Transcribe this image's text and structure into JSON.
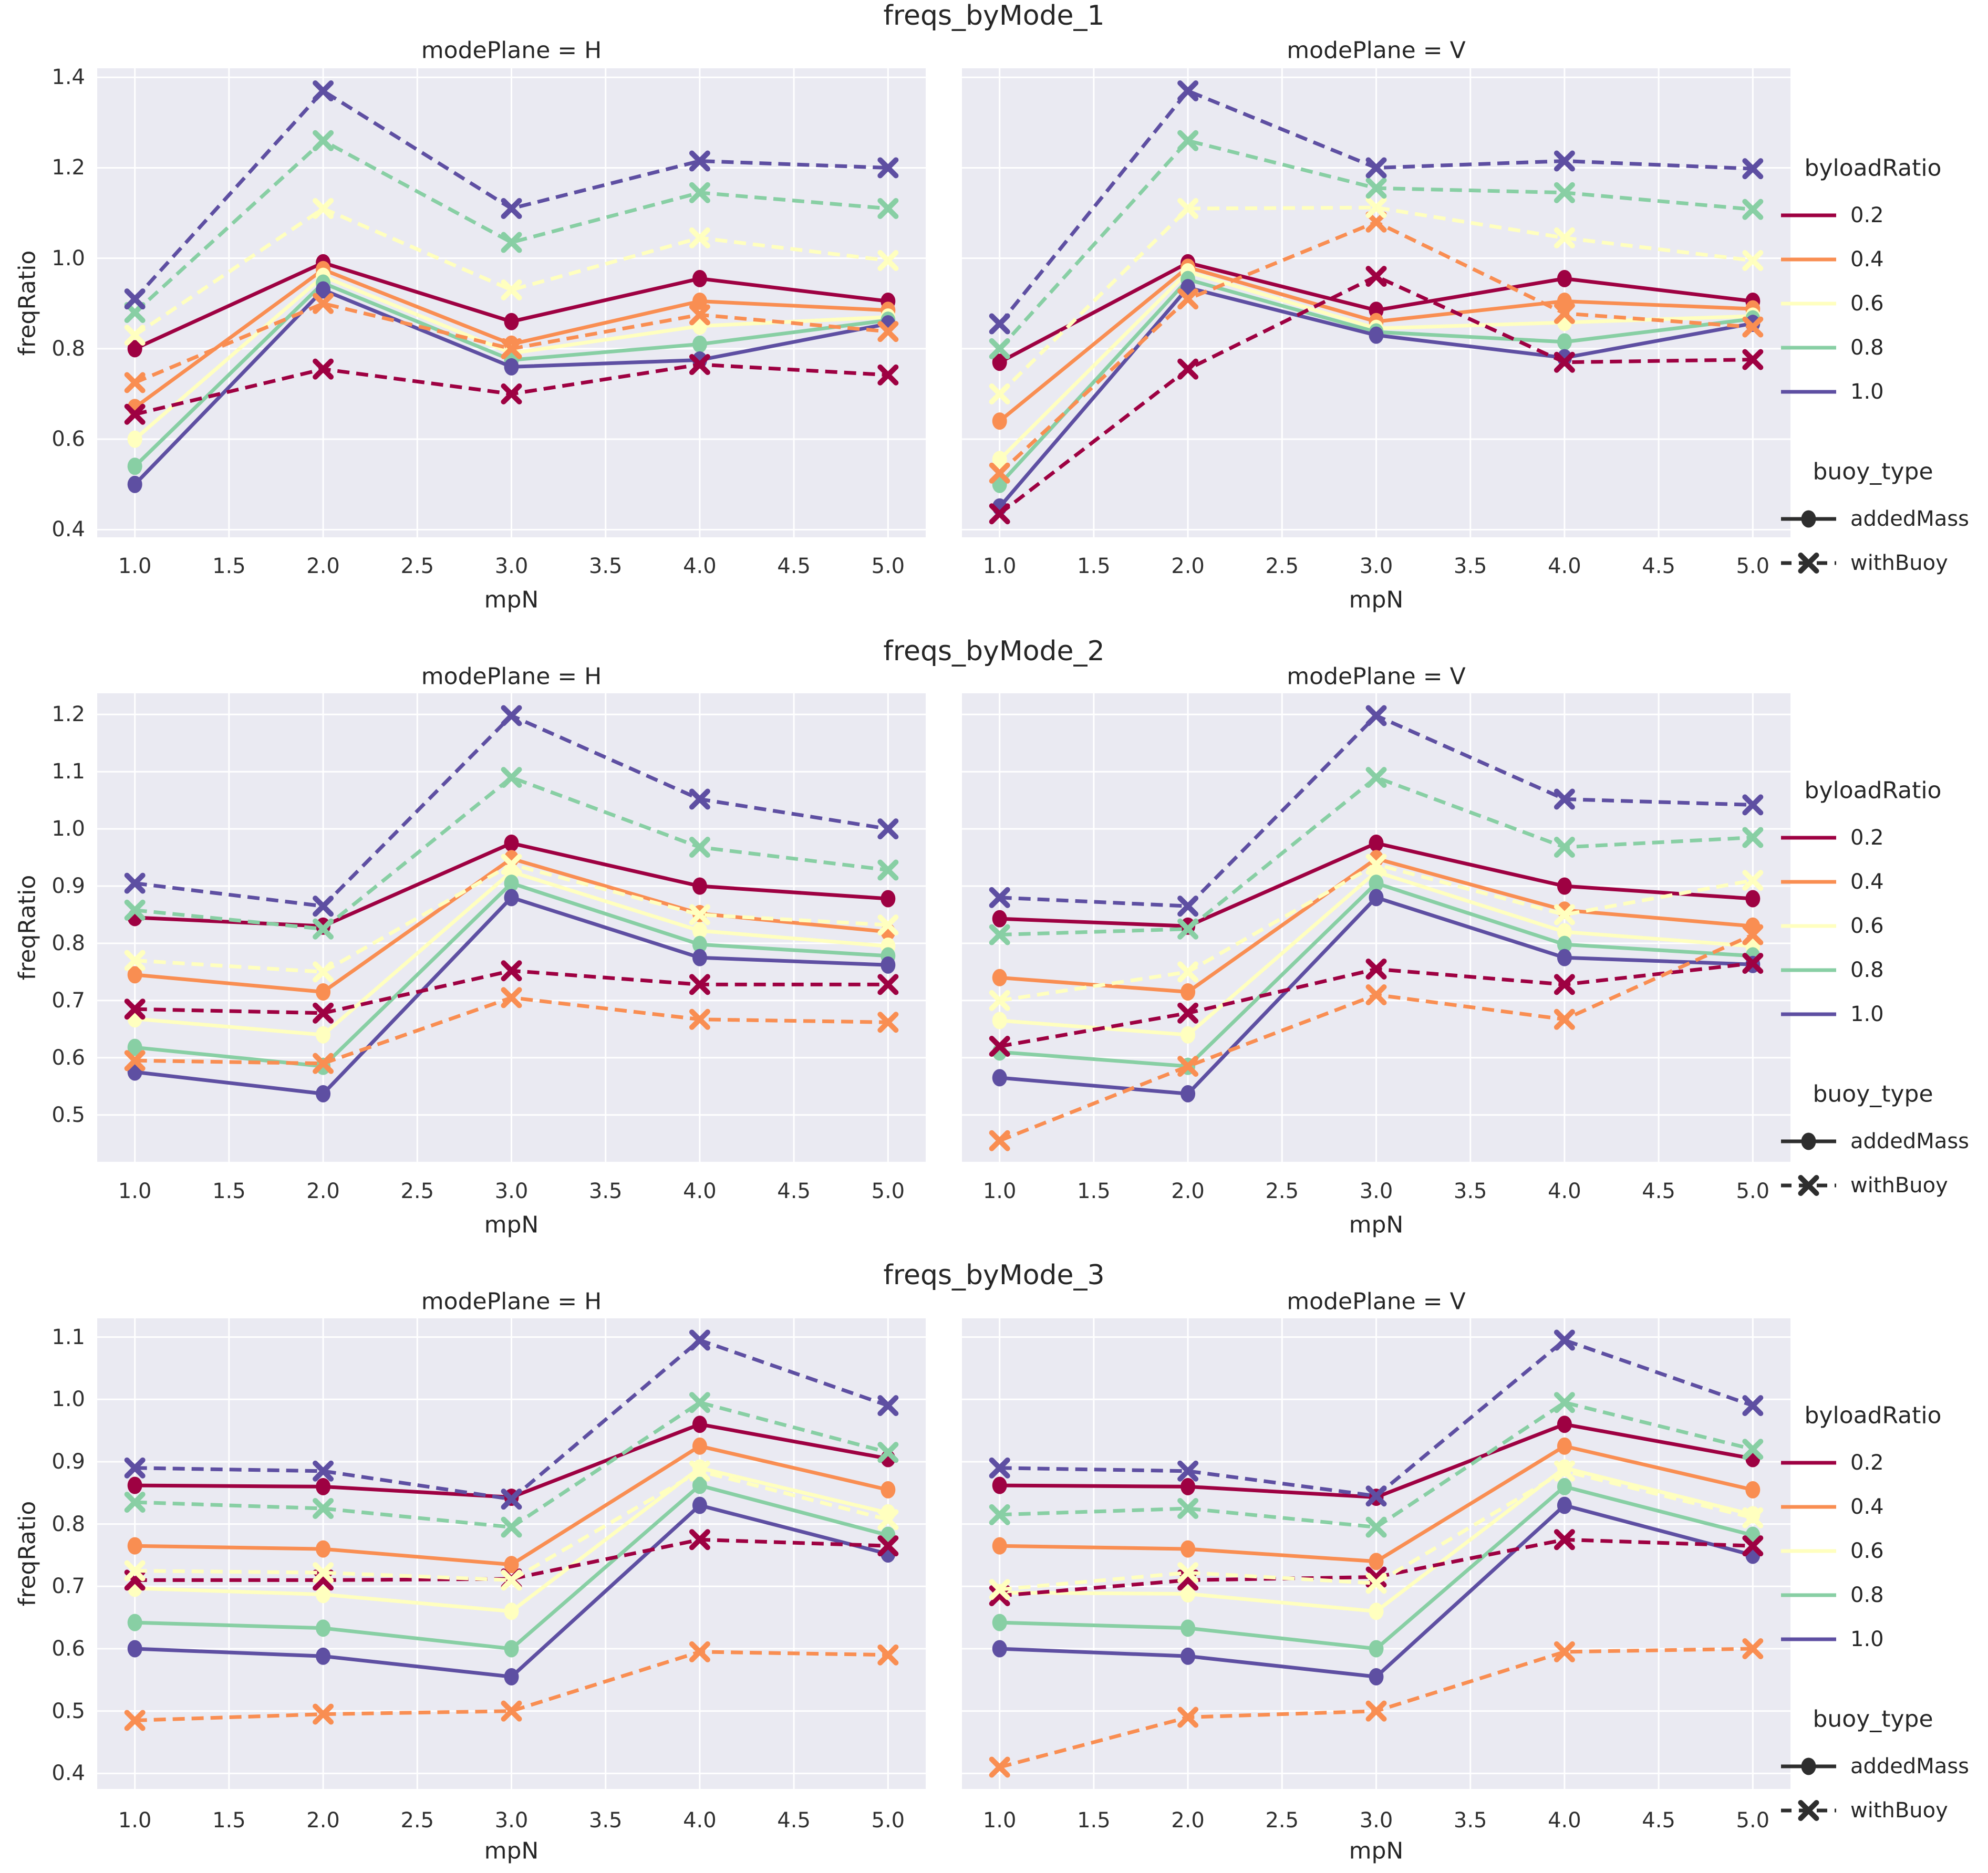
{
  "figure_kind": "seaborn relplot grid, 3 stacked figures x 2 facets",
  "colors": {
    "panel_bg": "#eaeaf2",
    "grid": "#ffffff",
    "text": "#262626",
    "tick_text": "#303030",
    "legend_marker": "#2e2e2e"
  },
  "axes": {
    "xlabel": "mpN",
    "ylabel": "freqRatio",
    "xlim": [
      0.8,
      5.2
    ],
    "x_values": [
      1,
      2,
      3,
      4,
      5
    ],
    "xtick_values": [
      1.0,
      1.5,
      2.0,
      2.5,
      3.0,
      3.5,
      4.0,
      4.5,
      5.0
    ],
    "xticklabels": [
      "1.0",
      "1.5",
      "2.0",
      "2.5",
      "3.0",
      "3.5",
      "4.0",
      "4.5",
      "5.0"
    ]
  },
  "legend": {
    "hue_title": "byloadRatio",
    "hue_items": [
      {
        "label": "0.2",
        "color": "#9e0142"
      },
      {
        "label": "0.4",
        "color": "#f98e52"
      },
      {
        "label": "0.6",
        "color": "#ffffbf"
      },
      {
        "label": "0.8",
        "color": "#88cfa4"
      },
      {
        "label": "1.0",
        "color": "#5e4fa2"
      }
    ],
    "style_title": "buoy_type",
    "style_items": [
      {
        "label": "addedMass",
        "line": "solid",
        "marker": "circle"
      },
      {
        "label": "withBuoy",
        "line": "dashed",
        "marker": "x"
      }
    ]
  },
  "chart_data": [
    {
      "type": "line",
      "title": "freqs_byMode_1",
      "ylim": [
        0.383,
        1.42
      ],
      "ytick_values": [
        1.4,
        1.2,
        1.0,
        0.8,
        0.6,
        0.4
      ],
      "yticklabels": [
        "1.4",
        "1.2",
        "1.0",
        "0.8",
        "0.6",
        "0.4"
      ],
      "panels": [
        {
          "title": "modePlane = H",
          "series": [
            {
              "byloadRatio": "0.2",
              "buoy_type": "addedMass",
              "values": [
                0.8,
                0.99,
                0.86,
                0.955,
                0.905
              ]
            },
            {
              "byloadRatio": "0.4",
              "buoy_type": "addedMass",
              "values": [
                0.67,
                0.975,
                0.81,
                0.905,
                0.885
              ]
            },
            {
              "byloadRatio": "0.6",
              "buoy_type": "addedMass",
              "values": [
                0.6,
                0.96,
                0.79,
                0.85,
                0.87
              ]
            },
            {
              "byloadRatio": "0.8",
              "buoy_type": "addedMass",
              "values": [
                0.54,
                0.945,
                0.775,
                0.81,
                0.863
              ]
            },
            {
              "byloadRatio": "1.0",
              "buoy_type": "addedMass",
              "values": [
                0.5,
                0.93,
                0.76,
                0.775,
                0.855
              ]
            },
            {
              "byloadRatio": "0.2",
              "buoy_type": "withBuoy",
              "values": [
                0.655,
                0.755,
                0.7,
                0.765,
                0.742
              ]
            },
            {
              "byloadRatio": "0.4",
              "buoy_type": "withBuoy",
              "values": [
                0.725,
                0.9,
                0.8,
                0.875,
                0.838
              ]
            },
            {
              "byloadRatio": "0.6",
              "buoy_type": "withBuoy",
              "values": [
                0.83,
                1.11,
                0.93,
                1.045,
                0.995
              ]
            },
            {
              "byloadRatio": "0.8",
              "buoy_type": "withBuoy",
              "values": [
                0.88,
                1.26,
                1.035,
                1.145,
                1.11
              ]
            },
            {
              "byloadRatio": "1.0",
              "buoy_type": "withBuoy",
              "values": [
                0.91,
                1.37,
                1.11,
                1.215,
                1.2
              ]
            }
          ]
        },
        {
          "title": "modePlane = V",
          "series": [
            {
              "byloadRatio": "0.2",
              "buoy_type": "addedMass",
              "values": [
                0.77,
                0.99,
                0.885,
                0.955,
                0.905
              ]
            },
            {
              "byloadRatio": "0.4",
              "buoy_type": "addedMass",
              "values": [
                0.64,
                0.98,
                0.86,
                0.905,
                0.888
              ]
            },
            {
              "byloadRatio": "0.6",
              "buoy_type": "addedMass",
              "values": [
                0.555,
                0.97,
                0.845,
                0.858,
                0.872
              ]
            },
            {
              "byloadRatio": "0.8",
              "buoy_type": "addedMass",
              "values": [
                0.5,
                0.953,
                0.837,
                0.815,
                0.866
              ]
            },
            {
              "byloadRatio": "1.0",
              "buoy_type": "addedMass",
              "values": [
                0.45,
                0.935,
                0.83,
                0.78,
                0.856
              ]
            },
            {
              "byloadRatio": "0.2",
              "buoy_type": "withBuoy",
              "values": [
                0.435,
                0.755,
                0.96,
                0.77,
                0.776
              ]
            },
            {
              "byloadRatio": "0.4",
              "buoy_type": "withBuoy",
              "values": [
                0.525,
                0.91,
                1.08,
                0.878,
                0.848
              ]
            },
            {
              "byloadRatio": "0.6",
              "buoy_type": "withBuoy",
              "values": [
                0.7,
                1.11,
                1.112,
                1.045,
                0.995
              ]
            },
            {
              "byloadRatio": "0.8",
              "buoy_type": "withBuoy",
              "values": [
                0.8,
                1.26,
                1.155,
                1.145,
                1.108
              ]
            },
            {
              "byloadRatio": "1.0",
              "buoy_type": "withBuoy",
              "values": [
                0.855,
                1.37,
                1.2,
                1.215,
                1.198
              ]
            }
          ]
        }
      ]
    },
    {
      "type": "line",
      "title": "freqs_byMode_2",
      "ylim": [
        0.418,
        1.237
      ],
      "ytick_values": [
        1.2,
        1.1,
        1.0,
        0.9,
        0.8,
        0.7,
        0.6,
        0.5
      ],
      "yticklabels": [
        "1.2",
        "1.1",
        "1.0",
        "0.9",
        "0.8",
        "0.7",
        "0.6",
        "0.5"
      ],
      "panels": [
        {
          "title": "modePlane = H",
          "series": [
            {
              "byloadRatio": "0.2",
              "buoy_type": "addedMass",
              "values": [
                0.845,
                0.83,
                0.975,
                0.9,
                0.878
              ]
            },
            {
              "byloadRatio": "0.4",
              "buoy_type": "addedMass",
              "values": [
                0.745,
                0.715,
                0.948,
                0.852,
                0.82
              ]
            },
            {
              "byloadRatio": "0.6",
              "buoy_type": "addedMass",
              "values": [
                0.668,
                0.64,
                0.925,
                0.822,
                0.795
              ]
            },
            {
              "byloadRatio": "0.8",
              "buoy_type": "addedMass",
              "values": [
                0.618,
                0.585,
                0.905,
                0.798,
                0.778
              ]
            },
            {
              "byloadRatio": "1.0",
              "buoy_type": "addedMass",
              "values": [
                0.575,
                0.537,
                0.88,
                0.775,
                0.762
              ]
            },
            {
              "byloadRatio": "0.2",
              "buoy_type": "withBuoy",
              "values": [
                0.685,
                0.678,
                0.752,
                0.728,
                0.728
              ]
            },
            {
              "byloadRatio": "0.4",
              "buoy_type": "withBuoy",
              "values": [
                0.595,
                0.59,
                0.705,
                0.667,
                0.662
              ]
            },
            {
              "byloadRatio": "0.6",
              "buoy_type": "withBuoy",
              "values": [
                0.77,
                0.75,
                0.938,
                0.85,
                0.832
              ]
            },
            {
              "byloadRatio": "0.8",
              "buoy_type": "withBuoy",
              "values": [
                0.858,
                0.825,
                1.09,
                0.968,
                0.928
              ]
            },
            {
              "byloadRatio": "1.0",
              "buoy_type": "withBuoy",
              "values": [
                0.905,
                0.865,
                1.198,
                1.052,
                1.0
              ]
            }
          ]
        },
        {
          "title": "modePlane = V",
          "series": [
            {
              "byloadRatio": "0.2",
              "buoy_type": "addedMass",
              "values": [
                0.843,
                0.83,
                0.975,
                0.9,
                0.878
              ]
            },
            {
              "byloadRatio": "0.4",
              "buoy_type": "addedMass",
              "values": [
                0.74,
                0.715,
                0.948,
                0.858,
                0.83
              ]
            },
            {
              "byloadRatio": "0.6",
              "buoy_type": "addedMass",
              "values": [
                0.665,
                0.64,
                0.925,
                0.82,
                0.795
              ]
            },
            {
              "byloadRatio": "0.8",
              "buoy_type": "addedMass",
              "values": [
                0.61,
                0.585,
                0.905,
                0.798,
                0.778
              ]
            },
            {
              "byloadRatio": "1.0",
              "buoy_type": "addedMass",
              "values": [
                0.565,
                0.537,
                0.88,
                0.775,
                0.763
              ]
            },
            {
              "byloadRatio": "0.2",
              "buoy_type": "withBuoy",
              "values": [
                0.62,
                0.678,
                0.755,
                0.728,
                0.765
              ]
            },
            {
              "byloadRatio": "0.4",
              "buoy_type": "withBuoy",
              "values": [
                0.455,
                0.585,
                0.71,
                0.667,
                0.815
              ]
            },
            {
              "byloadRatio": "0.6",
              "buoy_type": "withBuoy",
              "values": [
                0.7,
                0.75,
                0.938,
                0.85,
                0.91
              ]
            },
            {
              "byloadRatio": "0.8",
              "buoy_type": "withBuoy",
              "values": [
                0.815,
                0.825,
                1.09,
                0.968,
                0.985
              ]
            },
            {
              "byloadRatio": "1.0",
              "buoy_type": "withBuoy",
              "values": [
                0.88,
                0.865,
                1.198,
                1.052,
                1.042
              ]
            }
          ]
        }
      ]
    },
    {
      "type": "line",
      "title": "freqs_byMode_3",
      "ylim": [
        0.375,
        1.13
      ],
      "ytick_values": [
        1.1,
        1.0,
        0.9,
        0.8,
        0.7,
        0.6,
        0.5,
        0.4
      ],
      "yticklabels": [
        "1.1",
        "1.0",
        "0.9",
        "0.8",
        "0.7",
        "0.6",
        "0.5",
        "0.4"
      ],
      "panels": [
        {
          "title": "modePlane = H",
          "series": [
            {
              "byloadRatio": "0.2",
              "buoy_type": "addedMass",
              "values": [
                0.862,
                0.86,
                0.843,
                0.96,
                0.905
              ]
            },
            {
              "byloadRatio": "0.4",
              "buoy_type": "addedMass",
              "values": [
                0.765,
                0.76,
                0.735,
                0.925,
                0.855
              ]
            },
            {
              "byloadRatio": "0.6",
              "buoy_type": "addedMass",
              "values": [
                0.697,
                0.687,
                0.66,
                0.89,
                0.818
              ]
            },
            {
              "byloadRatio": "0.8",
              "buoy_type": "addedMass",
              "values": [
                0.642,
                0.633,
                0.6,
                0.862,
                0.782
              ]
            },
            {
              "byloadRatio": "1.0",
              "buoy_type": "addedMass",
              "values": [
                0.6,
                0.588,
                0.555,
                0.83,
                0.752
              ]
            },
            {
              "byloadRatio": "0.2",
              "buoy_type": "withBuoy",
              "values": [
                0.71,
                0.71,
                0.712,
                0.775,
                0.765
              ]
            },
            {
              "byloadRatio": "0.4",
              "buoy_type": "withBuoy",
              "values": [
                0.485,
                0.495,
                0.5,
                0.595,
                0.59
              ]
            },
            {
              "byloadRatio": "0.6",
              "buoy_type": "withBuoy",
              "values": [
                0.725,
                0.722,
                0.71,
                0.885,
                0.807
              ]
            },
            {
              "byloadRatio": "0.8",
              "buoy_type": "withBuoy",
              "values": [
                0.835,
                0.825,
                0.795,
                0.995,
                0.915
              ]
            },
            {
              "byloadRatio": "1.0",
              "buoy_type": "withBuoy",
              "values": [
                0.89,
                0.885,
                0.84,
                1.095,
                0.99
              ]
            }
          ]
        },
        {
          "title": "modePlane = V",
          "series": [
            {
              "byloadRatio": "0.2",
              "buoy_type": "addedMass",
              "values": [
                0.862,
                0.86,
                0.843,
                0.96,
                0.905
              ]
            },
            {
              "byloadRatio": "0.4",
              "buoy_type": "addedMass",
              "values": [
                0.765,
                0.76,
                0.74,
                0.925,
                0.855
              ]
            },
            {
              "byloadRatio": "0.6",
              "buoy_type": "addedMass",
              "values": [
                0.69,
                0.688,
                0.66,
                0.89,
                0.815
              ]
            },
            {
              "byloadRatio": "0.8",
              "buoy_type": "addedMass",
              "values": [
                0.642,
                0.633,
                0.6,
                0.86,
                0.782
              ]
            },
            {
              "byloadRatio": "1.0",
              "buoy_type": "addedMass",
              "values": [
                0.6,
                0.588,
                0.555,
                0.83,
                0.75
              ]
            },
            {
              "byloadRatio": "0.2",
              "buoy_type": "withBuoy",
              "values": [
                0.685,
                0.71,
                0.715,
                0.775,
                0.765
              ]
            },
            {
              "byloadRatio": "0.4",
              "buoy_type": "withBuoy",
              "values": [
                0.41,
                0.49,
                0.5,
                0.595,
                0.6
              ]
            },
            {
              "byloadRatio": "0.6",
              "buoy_type": "withBuoy",
              "values": [
                0.695,
                0.722,
                0.705,
                0.885,
                0.81
              ]
            },
            {
              "byloadRatio": "0.8",
              "buoy_type": "withBuoy",
              "values": [
                0.815,
                0.825,
                0.795,
                0.995,
                0.92
              ]
            },
            {
              "byloadRatio": "1.0",
              "buoy_type": "withBuoy",
              "values": [
                0.89,
                0.885,
                0.845,
                1.095,
                0.99
              ]
            }
          ]
        }
      ]
    }
  ]
}
